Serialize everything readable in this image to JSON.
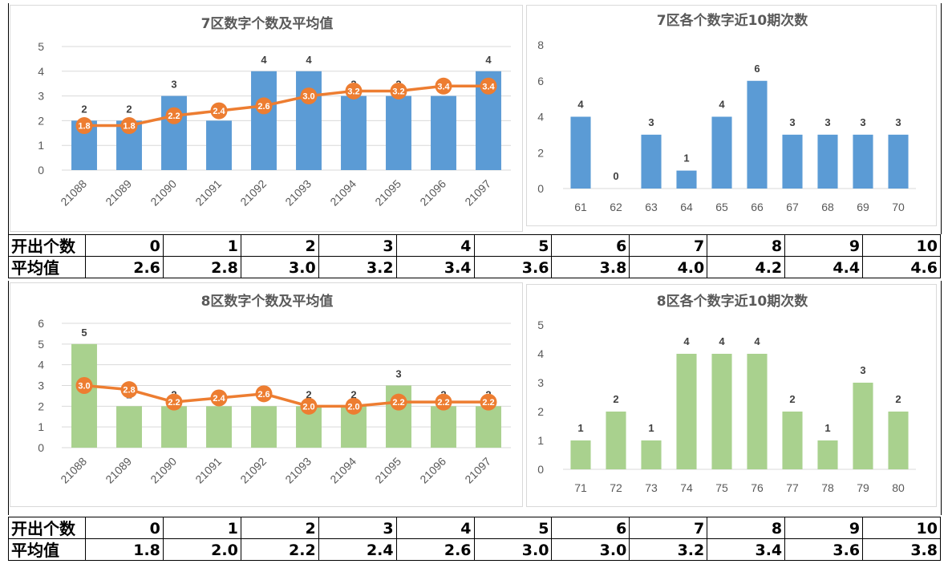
{
  "colors": {
    "blue_bar": "#5b9bd5",
    "green_bar": "#a9d18e",
    "line": "#ed7d31",
    "grid": "#d9d9d9",
    "axis_text": "#595959"
  },
  "zones": [
    {
      "combo": {
        "title": "7区数字个数及平均值",
        "categories": [
          "21088",
          "21089",
          "21090",
          "21091",
          "21092",
          "21093",
          "21094",
          "21095",
          "21096",
          "21097"
        ],
        "bars": [
          2,
          2,
          3,
          2,
          4,
          4,
          3,
          3,
          3,
          4
        ],
        "avg": [
          1.8,
          1.8,
          2.2,
          2.4,
          2.6,
          3.0,
          3.2,
          3.2,
          3.4,
          3.4
        ],
        "ylim": [
          0,
          5
        ],
        "yticks": [
          "0",
          "1",
          "2",
          "3",
          "4",
          "5"
        ]
      },
      "freq": {
        "title": "7区各个数字近10期次数",
        "categories": [
          "61",
          "62",
          "63",
          "64",
          "65",
          "66",
          "67",
          "68",
          "69",
          "70"
        ],
        "values": [
          4,
          0,
          3,
          1,
          4,
          6,
          3,
          3,
          3,
          3
        ],
        "ylim": [
          0,
          8
        ],
        "yticks": [
          "0",
          "2",
          "4",
          "6",
          "8"
        ]
      },
      "table": {
        "row1_label": "开出个数",
        "row1": [
          "0",
          "1",
          "2",
          "3",
          "4",
          "5",
          "6",
          "7",
          "8",
          "9",
          "10"
        ],
        "row2_label": "平均值",
        "row2": [
          "2.6",
          "2.8",
          "3.0",
          "3.2",
          "3.4",
          "3.6",
          "3.8",
          "4.0",
          "4.2",
          "4.4",
          "4.6"
        ]
      }
    },
    {
      "combo": {
        "title": "8区数字个数及平均值",
        "categories": [
          "21088",
          "21089",
          "21090",
          "21091",
          "21092",
          "21093",
          "21094",
          "21095",
          "21096",
          "21097"
        ],
        "bars": [
          5,
          2,
          2,
          2,
          2,
          2,
          2,
          3,
          2,
          2
        ],
        "avg": [
          3.0,
          2.8,
          2.2,
          2.4,
          2.6,
          2.0,
          2.0,
          2.2,
          2.2,
          2.2
        ],
        "ylim": [
          0,
          6
        ],
        "yticks": [
          "0",
          "1",
          "2",
          "3",
          "4",
          "5",
          "6"
        ]
      },
      "freq": {
        "title": "8区各个数字近10期次数",
        "categories": [
          "71",
          "72",
          "73",
          "74",
          "75",
          "76",
          "77",
          "78",
          "79",
          "80"
        ],
        "values": [
          1,
          2,
          1,
          4,
          4,
          4,
          2,
          1,
          3,
          2
        ],
        "ylim": [
          0,
          5
        ],
        "yticks": [
          "0",
          "1",
          "2",
          "3",
          "4",
          "5"
        ]
      },
      "table": {
        "row1_label": "开出个数",
        "row1": [
          "0",
          "1",
          "2",
          "3",
          "4",
          "5",
          "6",
          "7",
          "8",
          "9",
          "10"
        ],
        "row2_label": "平均值",
        "row2": [
          "1.8",
          "2.0",
          "2.2",
          "2.4",
          "2.6",
          "3.0",
          "3.0",
          "3.2",
          "3.4",
          "3.6",
          "3.8"
        ]
      }
    }
  ],
  "chart_data": [
    {
      "type": "bar",
      "title": "7区数字个数及平均值",
      "categories": [
        "21088",
        "21089",
        "21090",
        "21091",
        "21092",
        "21093",
        "21094",
        "21095",
        "21096",
        "21097"
      ],
      "series": [
        {
          "values": [
            2,
            2,
            3,
            2,
            4,
            4,
            3,
            3,
            3,
            4
          ]
        },
        {
          "type": "line",
          "values": [
            1.8,
            1.8,
            2.2,
            2.4,
            2.6,
            3.0,
            3.2,
            3.2,
            3.4,
            3.4
          ]
        }
      ],
      "ylim": [
        0,
        5
      ],
      "grid": true
    },
    {
      "type": "bar",
      "title": "7区各个数字近10期次数",
      "categories": [
        "61",
        "62",
        "63",
        "64",
        "65",
        "66",
        "67",
        "68",
        "69",
        "70"
      ],
      "values": [
        4,
        0,
        3,
        1,
        4,
        6,
        3,
        3,
        3,
        3
      ],
      "ylim": [
        0,
        8
      ],
      "grid": false
    },
    {
      "type": "bar",
      "title": "8区数字个数及平均值",
      "categories": [
        "21088",
        "21089",
        "21090",
        "21091",
        "21092",
        "21093",
        "21094",
        "21095",
        "21096",
        "21097"
      ],
      "series": [
        {
          "values": [
            5,
            2,
            2,
            2,
            2,
            2,
            2,
            3,
            2,
            2
          ]
        },
        {
          "type": "line",
          "values": [
            3.0,
            2.8,
            2.2,
            2.4,
            2.6,
            2.0,
            2.0,
            2.2,
            2.2,
            2.2
          ]
        }
      ],
      "ylim": [
        0,
        6
      ],
      "grid": true
    },
    {
      "type": "bar",
      "title": "8区各个数字近10期次数",
      "categories": [
        "71",
        "72",
        "73",
        "74",
        "75",
        "76",
        "77",
        "78",
        "79",
        "80"
      ],
      "values": [
        1,
        2,
        1,
        4,
        4,
        4,
        2,
        1,
        3,
        2
      ],
      "ylim": [
        0,
        5
      ],
      "grid": false
    }
  ]
}
